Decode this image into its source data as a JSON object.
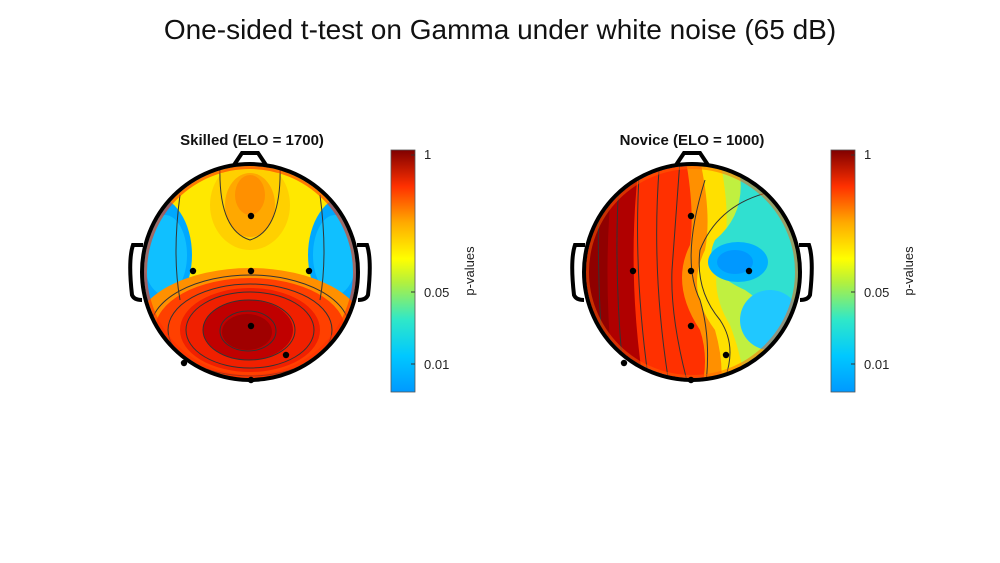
{
  "figure": {
    "title": "One-sided t-test on Gamma under white noise (65 dB)"
  },
  "chart_data": [
    {
      "type": "heatmap",
      "subtype": "scalp-topography",
      "title": "Skilled (ELO = 1700)",
      "colorbar": {
        "label": "p-values",
        "scale": "log",
        "range": [
          0.006,
          1
        ],
        "ticks": [
          "1",
          "0.05",
          "0.01"
        ],
        "tick_values": [
          1,
          0.05,
          0.01
        ],
        "colormap": "jet"
      },
      "electrodes": [
        {
          "pos": "frontal",
          "p": 0.25
        },
        {
          "pos": "left-temporal",
          "p": 0.05
        },
        {
          "pos": "central",
          "p": 0.18
        },
        {
          "pos": "right-temporal",
          "p": 0.03
        },
        {
          "pos": "parietal",
          "p": 0.9
        },
        {
          "pos": "left-occipital",
          "p": 0.5
        },
        {
          "pos": "right-occipital",
          "p": 0.4
        },
        {
          "pos": "occipital",
          "p": 0.6
        }
      ]
    },
    {
      "type": "heatmap",
      "subtype": "scalp-topography",
      "title": "Novice (ELO = 1000)",
      "colorbar": {
        "label": "p-values",
        "scale": "log",
        "range": [
          0.006,
          1
        ],
        "ticks": [
          "1",
          "0.05",
          "0.01"
        ],
        "tick_values": [
          1,
          0.05,
          0.01
        ],
        "colormap": "jet"
      },
      "electrodes": [
        {
          "pos": "frontal",
          "p": 0.3
        },
        {
          "pos": "left-temporal",
          "p": 0.95
        },
        {
          "pos": "central",
          "p": 0.35
        },
        {
          "pos": "right-temporal",
          "p": 0.012
        },
        {
          "pos": "parietal",
          "p": 0.4
        },
        {
          "pos": "left-occipital",
          "p": 0.7
        },
        {
          "pos": "right-occipital",
          "p": 0.04
        },
        {
          "pos": "occipital",
          "p": 0.5
        }
      ]
    }
  ],
  "colors": {
    "outline": "#000000",
    "contour": "#333333"
  }
}
